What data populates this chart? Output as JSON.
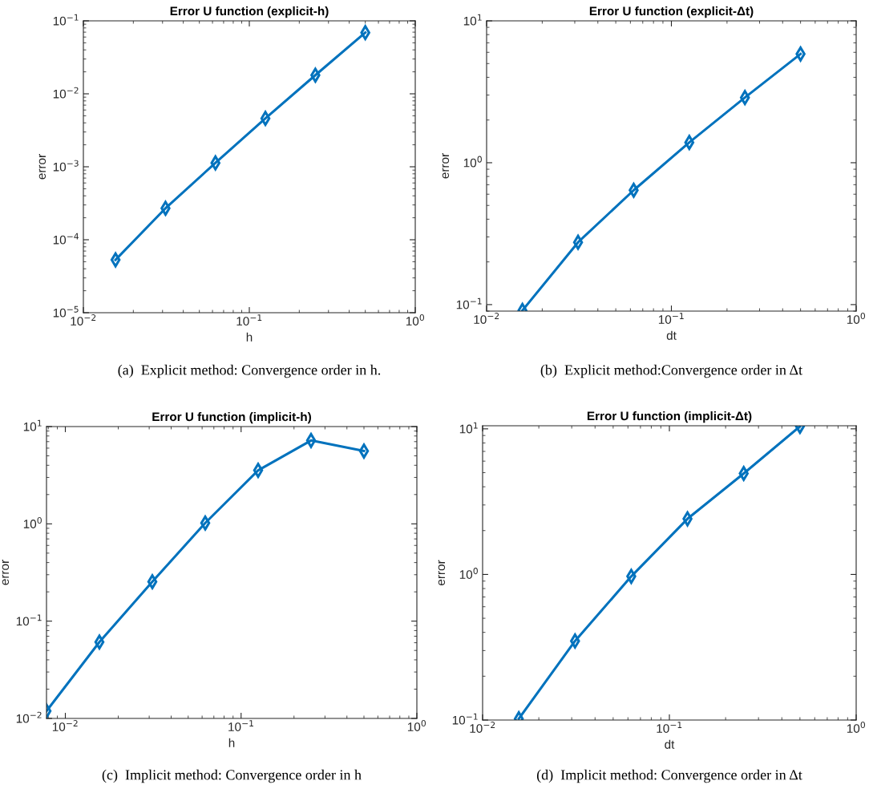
{
  "chart_data": [
    {
      "type": "line",
      "title": "Error U function (explicit-h)",
      "xlabel": "h",
      "ylabel": "error",
      "log": "xy",
      "marker": "diamond",
      "line_style": "solid",
      "grid": false,
      "xlim": [
        0.01,
        1
      ],
      "xticks": [
        {
          "value": 0.01,
          "label": "10$^{−2}$"
        },
        {
          "value": 0.1,
          "label": "10$^{−1}$"
        },
        {
          "value": 1,
          "label": "10$^{0}$"
        }
      ],
      "ylim": [
        1e-05,
        0.1
      ],
      "yticks": [
        {
          "value": 1e-05,
          "label": "10$^{−5}$"
        },
        {
          "value": 0.0001,
          "label": "10$^{−4}$"
        },
        {
          "value": 0.001,
          "label": "10$^{−3}$"
        },
        {
          "value": 0.01,
          "label": "10$^{−2}$"
        },
        {
          "value": 0.1,
          "label": "10$^{−1}$"
        }
      ],
      "x": [
        0.015625,
        0.03125,
        0.0625,
        0.125,
        0.25,
        0.5
      ],
      "series": [
        {
          "color": "#0072bd",
          "values": [
            5.3e-05,
            0.00027,
            0.00113,
            0.0046,
            0.018,
            0.069
          ]
        }
      ],
      "annotations": [
        "(a)  Explicit method: Convergence order in h."
      ]
    },
    {
      "type": "line",
      "title": "Error U function (explicit-Δt)",
      "xlabel": "dt",
      "ylabel": "error",
      "log": "xy",
      "marker": "diamond",
      "line_style": "solid",
      "grid": false,
      "xlim": [
        0.01,
        1
      ],
      "xticks": [
        {
          "value": 0.01,
          "label": "10$^{−2}$"
        },
        {
          "value": 0.1,
          "label": "10$^{−1}$"
        },
        {
          "value": 1,
          "label": "10$^{0}$"
        }
      ],
      "ylim": [
        0.09,
        10
      ],
      "yticks": [
        {
          "value": 0.1,
          "label": "10$^{−1}$"
        },
        {
          "value": 1,
          "label": "10$^{0}$"
        },
        {
          "value": 10,
          "label": "10$^{1}$"
        }
      ],
      "x": [
        0.015625,
        0.03125,
        0.0625,
        0.125,
        0.25,
        0.5
      ],
      "series": [
        {
          "color": "#0072bd",
          "values": [
            0.091,
            0.275,
            0.64,
            1.39,
            2.88,
            5.84
          ]
        }
      ],
      "annotations": [
        "(b)  Explicit method:Convergence order in Δt"
      ]
    },
    {
      "type": "line",
      "title": "Error U function (implicit-h)",
      "xlabel": "h",
      "ylabel": "error",
      "log": "xy",
      "marker": "diamond",
      "line_style": "solid",
      "grid": false,
      "xlim": [
        0.0078125,
        1
      ],
      "xticks": [
        {
          "value": 0.01,
          "label": "10$^{−2}$"
        },
        {
          "value": 0.1,
          "label": "10$^{−1}$"
        },
        {
          "value": 1,
          "label": "10$^{0}$"
        }
      ],
      "ylim": [
        0.01,
        10
      ],
      "yticks": [
        {
          "value": 0.01,
          "label": "10$^{−2}$"
        },
        {
          "value": 0.1,
          "label": "10$^{−1}$"
        },
        {
          "value": 1,
          "label": "10$^{0}$"
        },
        {
          "value": 10,
          "label": "10$^{1}$"
        }
      ],
      "x": [
        0.0078125,
        0.015625,
        0.03125,
        0.0625,
        0.125,
        0.25,
        0.5
      ],
      "series": [
        {
          "color": "#0072bd",
          "values": [
            0.0119,
            0.061,
            0.254,
            1.02,
            3.55,
            7.2,
            5.6
          ]
        }
      ],
      "annotations": [
        "(c)  Implicit method: Convergence order in h"
      ]
    },
    {
      "type": "line",
      "title": "Error U function (implicit-Δt)",
      "xlabel": "dt",
      "ylabel": "error",
      "log": "xy",
      "marker": "diamond",
      "line_style": "solid",
      "grid": false,
      "xlim": [
        0.01,
        1
      ],
      "xticks": [
        {
          "value": 0.01,
          "label": "10$^{−2}$"
        },
        {
          "value": 0.1,
          "label": "10$^{−1}$"
        },
        {
          "value": 1,
          "label": "10$^{0}$"
        }
      ],
      "ylim": [
        0.1,
        10.5
      ],
      "yticks": [
        {
          "value": 0.1,
          "label": "10$^{−1}$"
        },
        {
          "value": 1,
          "label": "10$^{0}$"
        },
        {
          "value": 10,
          "label": "10$^{1}$"
        }
      ],
      "x": [
        0.015625,
        0.03125,
        0.0625,
        0.125,
        0.25,
        0.5
      ],
      "series": [
        {
          "color": "#0072bd",
          "values": [
            0.102,
            0.349,
            0.97,
            2.41,
            4.94,
            10.4
          ]
        }
      ],
      "annotations": [
        "(d)  Implicit method: Convergence order in Δt"
      ]
    }
  ]
}
